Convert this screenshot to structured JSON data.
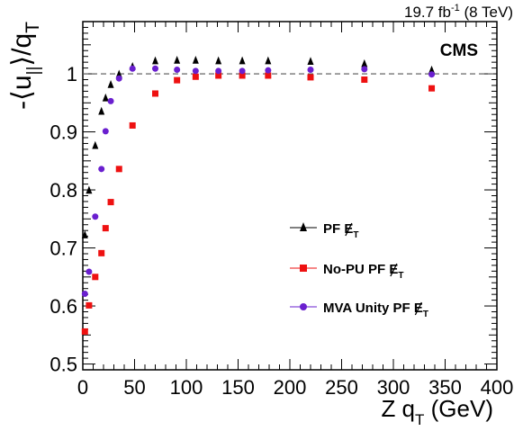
{
  "header": {
    "lumi_text": "19.7 fb",
    "lumi_exp": "-1",
    "lumi_tail": " (8 TeV)",
    "experiment": "CMS"
  },
  "chart_data": {
    "type": "scatter",
    "xlabel": {
      "main": "Z q",
      "sub": "T",
      "unit": " (GeV)"
    },
    "ylabel": {
      "lead": "-⟨u",
      "sub1": "||",
      "mid": "⟩/q",
      "sub2": "T"
    },
    "xlim": [
      0,
      400
    ],
    "ylim": [
      0.49,
      1.09
    ],
    "x_ticks": [
      0,
      50,
      100,
      150,
      200,
      250,
      300,
      350,
      400
    ],
    "y_ticks": [
      0.5,
      0.6,
      0.7,
      0.8,
      0.9,
      1
    ],
    "reference_line": 1.0,
    "legend_position": "center-right",
    "series": [
      {
        "name": "PF",
        "met_symbol": "E",
        "met_sub": "T",
        "marker": "triangle",
        "color": "#000000",
        "x": [
          2,
          6,
          12,
          18,
          22,
          27,
          35,
          48,
          70,
          91,
          109,
          131,
          154,
          179,
          220,
          272,
          337
        ],
        "y": [
          0.722,
          0.799,
          0.876,
          0.935,
          0.958,
          0.981,
          0.999,
          1.012,
          1.022,
          1.023,
          1.023,
          1.022,
          1.022,
          1.022,
          1.021,
          1.017,
          1.006
        ]
      },
      {
        "name": "No-PU PF",
        "met_symbol": "E",
        "met_sub": "T",
        "marker": "square",
        "color": "#ee1111",
        "x": [
          2,
          6,
          12,
          18,
          22,
          27,
          35,
          48,
          70,
          91,
          109,
          131,
          154,
          179,
          220,
          272,
          337
        ],
        "y": [
          0.556,
          0.601,
          0.65,
          0.691,
          0.734,
          0.779,
          0.836,
          0.911,
          0.966,
          0.989,
          0.995,
          0.997,
          0.997,
          0.997,
          0.994,
          0.99,
          0.975
        ]
      },
      {
        "name": "MVA Unity PF",
        "met_symbol": "E",
        "met_sub": "T",
        "marker": "circle",
        "color": "#6a1fcf",
        "x": [
          2,
          6,
          12,
          18,
          22,
          27,
          35,
          48,
          70,
          91,
          109,
          131,
          154,
          179,
          220,
          272,
          337
        ],
        "y": [
          0.621,
          0.659,
          0.754,
          0.836,
          0.901,
          0.953,
          0.992,
          1.009,
          1.009,
          1.007,
          1.005,
          1.005,
          1.005,
          1.006,
          1.007,
          1.008,
          0.999
        ]
      }
    ]
  }
}
